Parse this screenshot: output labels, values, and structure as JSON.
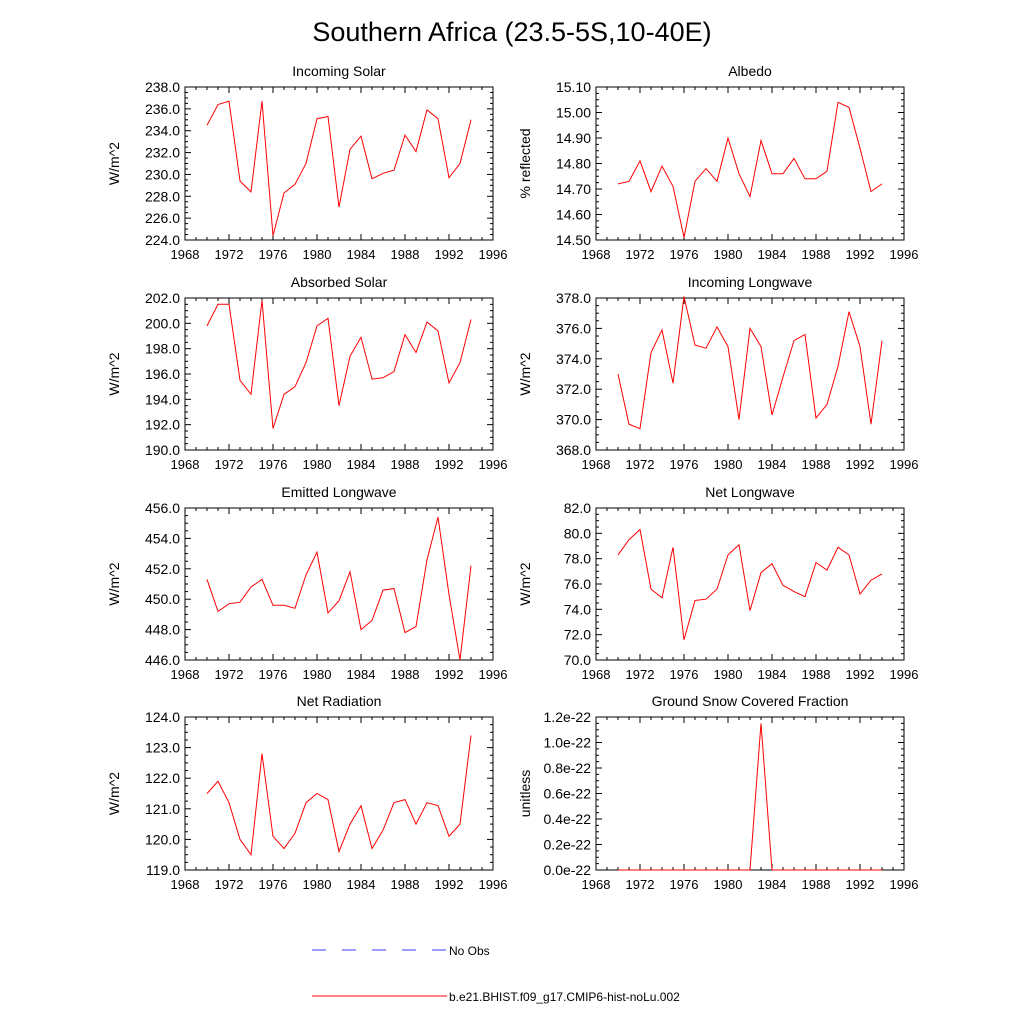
{
  "figure": {
    "title": "Southern Africa (23.5-5S,10-40E)",
    "legend": [
      {
        "label": "No Obs",
        "color": "#3d3dff",
        "dash": "dashed"
      },
      {
        "label": "b.e21.BHIST.f09_g17.CMIP6-hist-noLu.002",
        "color": "#ff0000",
        "dash": "solid"
      }
    ]
  },
  "chart_data": [
    {
      "type": "line",
      "title": "Incoming Solar",
      "ylabel": "W/m^2",
      "xlim": [
        1968,
        1996
      ],
      "ylim": [
        224,
        238
      ],
      "xticks": [
        1968,
        1972,
        1976,
        1980,
        1984,
        1988,
        1992,
        1996
      ],
      "yticks": [
        224,
        226,
        228,
        230,
        232,
        234,
        236,
        238
      ],
      "ytick_labels": [
        "224.0",
        "226.0",
        "228.0",
        "230.0",
        "232.0",
        "234.0",
        "236.0",
        "238.0"
      ],
      "x": [
        1970,
        1971,
        1972,
        1973,
        1974,
        1975,
        1976,
        1977,
        1978,
        1979,
        1980,
        1981,
        1982,
        1983,
        1984,
        1985,
        1986,
        1987,
        1988,
        1989,
        1990,
        1991,
        1992,
        1993,
        1994
      ],
      "series": [
        {
          "values": [
            234.5,
            236.4,
            236.7,
            229.4,
            228.4,
            236.7,
            224.4,
            228.3,
            229.1,
            231.0,
            235.1,
            235.3,
            227.0,
            232.3,
            233.5,
            229.6,
            230.1,
            230.4,
            233.6,
            232.1,
            235.9,
            235.1,
            229.7,
            231.0,
            235.0
          ],
          "color": "#ff0000"
        }
      ]
    },
    {
      "type": "line",
      "title": "Albedo",
      "ylabel": "% reflected",
      "xlim": [
        1968,
        1996
      ],
      "ylim": [
        14.5,
        15.1
      ],
      "xticks": [
        1968,
        1972,
        1976,
        1980,
        1984,
        1988,
        1992,
        1996
      ],
      "yticks": [
        14.5,
        14.6,
        14.7,
        14.8,
        14.9,
        15.0,
        15.1
      ],
      "ytick_labels": [
        "14.50",
        "14.60",
        "14.70",
        "14.80",
        "14.90",
        "15.00",
        "15.10"
      ],
      "x": [
        1970,
        1971,
        1972,
        1973,
        1974,
        1975,
        1976,
        1977,
        1978,
        1979,
        1980,
        1981,
        1982,
        1983,
        1984,
        1985,
        1986,
        1987,
        1988,
        1989,
        1990,
        1991,
        1992,
        1993,
        1994
      ],
      "series": [
        {
          "values": [
            14.72,
            14.73,
            14.81,
            14.69,
            14.79,
            14.71,
            14.51,
            14.73,
            14.78,
            14.73,
            14.9,
            14.76,
            14.67,
            14.89,
            14.76,
            14.76,
            14.82,
            14.74,
            14.74,
            14.77,
            15.04,
            15.02,
            14.86,
            14.69,
            14.72
          ],
          "color": "#ff0000"
        }
      ]
    },
    {
      "type": "line",
      "title": "Absorbed Solar",
      "ylabel": "W/m^2",
      "xlim": [
        1968,
        1996
      ],
      "ylim": [
        190,
        202
      ],
      "xticks": [
        1968,
        1972,
        1976,
        1980,
        1984,
        1988,
        1992,
        1996
      ],
      "yticks": [
        190,
        192,
        194,
        196,
        198,
        200,
        202
      ],
      "ytick_labels": [
        "190.0",
        "192.0",
        "194.0",
        "196.0",
        "198.0",
        "200.0",
        "202.0"
      ],
      "x": [
        1970,
        1971,
        1972,
        1973,
        1974,
        1975,
        1976,
        1977,
        1978,
        1979,
        1980,
        1981,
        1982,
        1983,
        1984,
        1985,
        1986,
        1987,
        1988,
        1989,
        1990,
        1991,
        1992,
        1993,
        1994
      ],
      "series": [
        {
          "values": [
            199.8,
            201.5,
            201.5,
            195.5,
            194.4,
            201.8,
            191.7,
            194.4,
            195.0,
            196.9,
            199.8,
            200.4,
            193.5,
            197.4,
            198.9,
            195.6,
            195.7,
            196.2,
            199.1,
            197.7,
            200.1,
            199.4,
            195.3,
            196.9,
            200.3
          ],
          "color": "#ff0000"
        }
      ]
    },
    {
      "type": "line",
      "title": "Incoming Longwave",
      "ylabel": "W/m^2",
      "xlim": [
        1968,
        1996
      ],
      "ylim": [
        368,
        378
      ],
      "xticks": [
        1968,
        1972,
        1976,
        1980,
        1984,
        1988,
        1992,
        1996
      ],
      "yticks": [
        368,
        370,
        372,
        374,
        376,
        378
      ],
      "ytick_labels": [
        "368.0",
        "370.0",
        "372.0",
        "374.0",
        "376.0",
        "378.0"
      ],
      "x": [
        1970,
        1971,
        1972,
        1973,
        1974,
        1975,
        1976,
        1977,
        1978,
        1979,
        1980,
        1981,
        1982,
        1983,
        1984,
        1985,
        1986,
        1987,
        1988,
        1989,
        1990,
        1991,
        1992,
        1993,
        1994
      ],
      "series": [
        {
          "values": [
            373.0,
            369.7,
            369.4,
            374.4,
            375.9,
            372.4,
            378.1,
            374.9,
            374.7,
            376.1,
            374.8,
            370.0,
            376.0,
            374.8,
            370.3,
            372.8,
            375.2,
            375.6,
            370.1,
            371.0,
            373.5,
            377.1,
            374.8,
            369.7,
            375.2
          ],
          "color": "#ff0000"
        }
      ]
    },
    {
      "type": "line",
      "title": "Emitted Longwave",
      "ylabel": "W/m^2",
      "xlim": [
        1968,
        1996
      ],
      "ylim": [
        446,
        456
      ],
      "xticks": [
        1968,
        1972,
        1976,
        1980,
        1984,
        1988,
        1992,
        1996
      ],
      "yticks": [
        446,
        448,
        450,
        452,
        454,
        456
      ],
      "ytick_labels": [
        "446.0",
        "448.0",
        "450.0",
        "452.0",
        "454.0",
        "456.0"
      ],
      "x": [
        1970,
        1971,
        1972,
        1973,
        1974,
        1975,
        1976,
        1977,
        1978,
        1979,
        1980,
        1981,
        1982,
        1983,
        1984,
        1985,
        1986,
        1987,
        1988,
        1989,
        1990,
        1991,
        1992,
        1993,
        1994
      ],
      "series": [
        {
          "values": [
            451.3,
            449.2,
            449.7,
            449.8,
            450.8,
            451.3,
            449.6,
            449.6,
            449.4,
            451.6,
            453.1,
            449.1,
            449.9,
            451.8,
            448.0,
            448.6,
            450.6,
            450.7,
            447.8,
            448.2,
            452.6,
            455.4,
            450.3,
            446.0,
            452.2
          ],
          "color": "#ff0000"
        }
      ]
    },
    {
      "type": "line",
      "title": "Net Longwave",
      "ylabel": "W/m^2",
      "xlim": [
        1968,
        1996
      ],
      "ylim": [
        70,
        82
      ],
      "xticks": [
        1968,
        1972,
        1976,
        1980,
        1984,
        1988,
        1992,
        1996
      ],
      "yticks": [
        70,
        72,
        74,
        76,
        78,
        80,
        82
      ],
      "ytick_labels": [
        "70.0",
        "72.0",
        "74.0",
        "76.0",
        "78.0",
        "80.0",
        "82.0"
      ],
      "x": [
        1970,
        1971,
        1972,
        1973,
        1974,
        1975,
        1976,
        1977,
        1978,
        1979,
        1980,
        1981,
        1982,
        1983,
        1984,
        1985,
        1986,
        1987,
        1988,
        1989,
        1990,
        1991,
        1992,
        1993,
        1994
      ],
      "series": [
        {
          "values": [
            78.3,
            79.5,
            80.3,
            75.6,
            74.9,
            78.9,
            71.6,
            74.7,
            74.8,
            75.6,
            78.3,
            79.1,
            73.9,
            76.9,
            77.6,
            75.9,
            75.4,
            75.0,
            77.7,
            77.1,
            78.9,
            78.3,
            75.2,
            76.3,
            76.8
          ],
          "color": "#ff0000"
        }
      ]
    },
    {
      "type": "line",
      "title": "Net Radiation",
      "ylabel": "W/m^2",
      "xlim": [
        1968,
        1996
      ],
      "ylim": [
        119,
        124
      ],
      "xticks": [
        1968,
        1972,
        1976,
        1980,
        1984,
        1988,
        1992,
        1996
      ],
      "yticks": [
        119,
        120,
        121,
        122,
        123,
        124
      ],
      "ytick_labels": [
        "119.0",
        "120.0",
        "121.0",
        "122.0",
        "123.0",
        "124.0"
      ],
      "x": [
        1970,
        1971,
        1972,
        1973,
        1974,
        1975,
        1976,
        1977,
        1978,
        1979,
        1980,
        1981,
        1982,
        1983,
        1984,
        1985,
        1986,
        1987,
        1988,
        1989,
        1990,
        1991,
        1992,
        1993,
        1994
      ],
      "series": [
        {
          "values": [
            121.5,
            121.9,
            121.2,
            120.0,
            119.5,
            122.8,
            120.1,
            119.7,
            120.2,
            121.2,
            121.5,
            121.3,
            119.6,
            120.5,
            121.1,
            119.7,
            120.3,
            121.2,
            121.3,
            120.5,
            121.2,
            121.1,
            120.1,
            120.5,
            123.4
          ],
          "color": "#ff0000"
        }
      ]
    },
    {
      "type": "line",
      "title": "Ground Snow Covered Fraction",
      "ylabel": "unitless",
      "xlim": [
        1968,
        1996
      ],
      "ylim": [
        0,
        1.2e-22
      ],
      "xticks": [
        1968,
        1972,
        1976,
        1980,
        1984,
        1988,
        1992,
        1996
      ],
      "yticks": [
        0,
        2e-23,
        4e-23,
        6e-23,
        8e-23,
        1e-22,
        1.2e-22
      ],
      "ytick_labels": [
        "0.0e-22",
        "0.2e-22",
        "0.4e-22",
        "0.6e-22",
        "0.8e-22",
        "1.0e-22",
        "1.2e-22"
      ],
      "x": [
        1970,
        1971,
        1972,
        1973,
        1974,
        1975,
        1976,
        1977,
        1978,
        1979,
        1980,
        1981,
        1982,
        1983,
        1984,
        1985,
        1986,
        1987,
        1988,
        1989,
        1990,
        1991,
        1992,
        1993,
        1994
      ],
      "series": [
        {
          "values": [
            0,
            0,
            0,
            0,
            0,
            0,
            0,
            0,
            0,
            0,
            0,
            0,
            0,
            1.15e-22,
            0,
            0,
            0,
            0,
            0,
            0,
            0,
            0,
            0,
            0,
            0
          ],
          "color": "#ff0000"
        }
      ]
    }
  ]
}
